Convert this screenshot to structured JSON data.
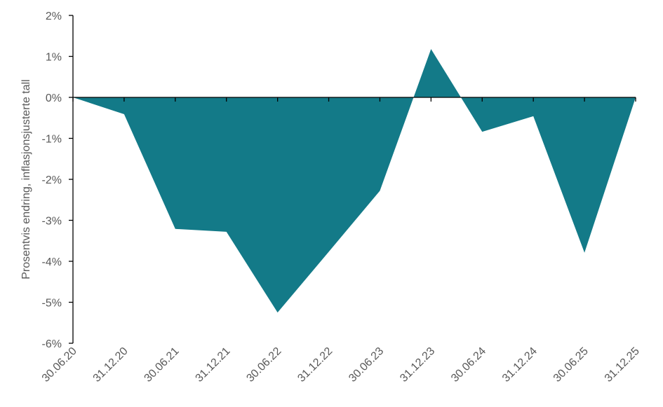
{
  "chart_data": {
    "type": "area",
    "title": "",
    "xlabel": "",
    "ylabel": "Prosentvis endring, inflasjonsjusterte tall",
    "categories": [
      "30.06.20",
      "31.12.20",
      "30.06.21",
      "31.12.21",
      "30.06.22",
      "31.12.22",
      "30.06.23",
      "31.12.23",
      "30.06.24",
      "31.12.24",
      "30.06.25",
      "31.12.25"
    ],
    "series": [
      {
        "values": [
          0,
          -0.41,
          -3.21,
          -3.28,
          -5.25,
          -3.77,
          -2.28,
          1.18,
          -0.84,
          -0.46,
          -3.79,
          0
        ]
      }
    ],
    "ylim": [
      -6,
      2
    ],
    "yticks": [
      2,
      1,
      0,
      -1,
      -2,
      -3,
      -4,
      -5,
      -6
    ],
    "ytick_labels": [
      "2%",
      "1%",
      "0%",
      "-1%",
      "-2%",
      "-3%",
      "-4%",
      "-5%",
      "-6%"
    ],
    "grid": false,
    "legend": "none",
    "color": "#137a88"
  }
}
